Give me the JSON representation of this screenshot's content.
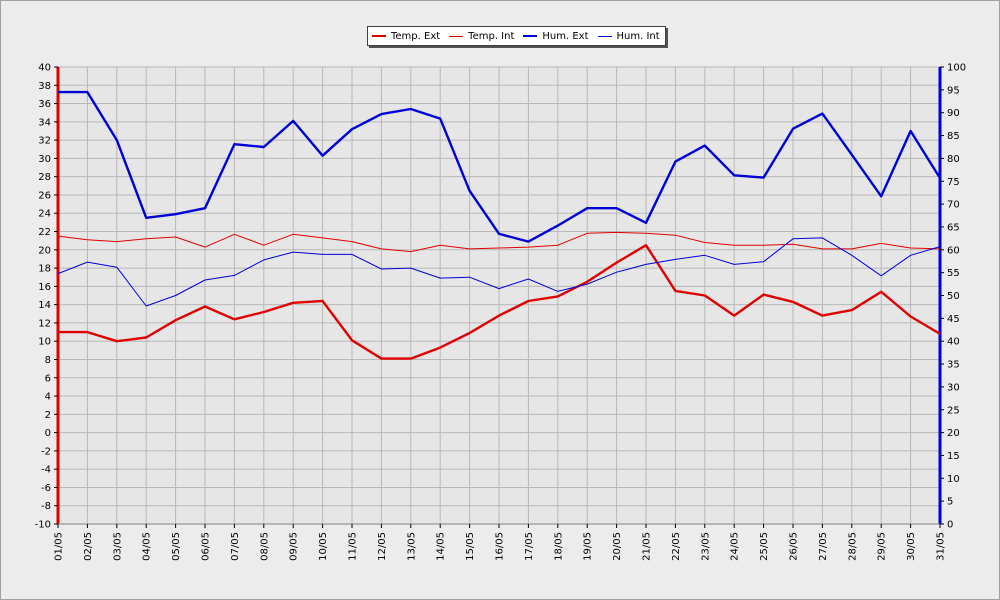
{
  "chart_data": {
    "type": "line",
    "title": "",
    "xlabel": "",
    "ylabel_left": "",
    "ylabel_right": "",
    "categories": [
      "01/05",
      "02/05",
      "03/05",
      "04/05",
      "05/05",
      "06/05",
      "07/05",
      "08/05",
      "09/05",
      "10/05",
      "11/05",
      "12/05",
      "13/05",
      "14/05",
      "15/05",
      "16/05",
      "17/05",
      "18/05",
      "19/05",
      "20/05",
      "21/05",
      "22/05",
      "23/05",
      "24/05",
      "25/05",
      "26/05",
      "27/05",
      "28/05",
      "29/05",
      "30/05",
      "31/05"
    ],
    "ylim_left": [
      -10,
      40
    ],
    "yticks_left": [
      -10,
      -8,
      -6,
      -4,
      -2,
      0,
      2,
      4,
      6,
      8,
      10,
      12,
      14,
      16,
      18,
      20,
      22,
      24,
      26,
      28,
      30,
      32,
      34,
      36,
      38,
      40
    ],
    "ylim_right": [
      0,
      100
    ],
    "yticks_right": [
      0,
      5,
      10,
      15,
      20,
      25,
      30,
      35,
      40,
      45,
      50,
      55,
      60,
      65,
      70,
      75,
      80,
      85,
      90,
      95,
      100
    ],
    "grid": true,
    "legend_position": "top-center",
    "series": [
      {
        "name": "Temp. Ext",
        "axis": "left",
        "color": "#e00000",
        "weight": "bold",
        "values": [
          11.0,
          11.0,
          10.0,
          10.4,
          12.3,
          13.8,
          12.4,
          13.2,
          14.2,
          14.4,
          10.1,
          8.1,
          8.1,
          9.3,
          10.9,
          12.8,
          14.4,
          14.9,
          16.5,
          18.6,
          20.5,
          15.5,
          15.0,
          12.8,
          15.1,
          14.3,
          12.8,
          13.4,
          15.4,
          12.7,
          10.8
        ]
      },
      {
        "name": "Temp. Int",
        "axis": "left",
        "color": "#e00000",
        "weight": "thin",
        "values": [
          21.5,
          21.1,
          20.9,
          21.2,
          21.4,
          20.3,
          21.7,
          20.5,
          21.7,
          21.3,
          20.9,
          20.1,
          19.8,
          20.5,
          20.1,
          20.2,
          20.3,
          20.5,
          21.8,
          21.9,
          21.8,
          21.6,
          20.8,
          20.5,
          20.5,
          20.6,
          20.1,
          20.1,
          20.7,
          20.2,
          20.1
        ]
      },
      {
        "name": "Hum. Ext",
        "axis": "right",
        "color": "#0000d8",
        "weight": "bold",
        "values": [
          94.5,
          94.5,
          84.0,
          67.0,
          67.8,
          69.1,
          83.1,
          82.5,
          88.2,
          80.6,
          86.4,
          89.7,
          90.8,
          88.7,
          72.9,
          63.5,
          61.8,
          65.3,
          69.1,
          69.1,
          65.9,
          79.3,
          82.8,
          76.3,
          75.8,
          86.5,
          89.8,
          80.8,
          71.7,
          86.0,
          75.7
        ]
      },
      {
        "name": "Hum. Int",
        "axis": "right",
        "color": "#0000d8",
        "weight": "thin",
        "values": [
          54.8,
          57.3,
          56.2,
          47.7,
          50.0,
          53.4,
          54.4,
          57.8,
          59.5,
          59.0,
          59.0,
          55.8,
          56.0,
          53.8,
          54.0,
          51.5,
          53.6,
          50.9,
          52.5,
          55.1,
          56.8,
          57.9,
          58.8,
          56.8,
          57.4,
          62.4,
          62.6,
          58.8,
          54.3,
          58.8,
          60.7
        ]
      }
    ]
  }
}
